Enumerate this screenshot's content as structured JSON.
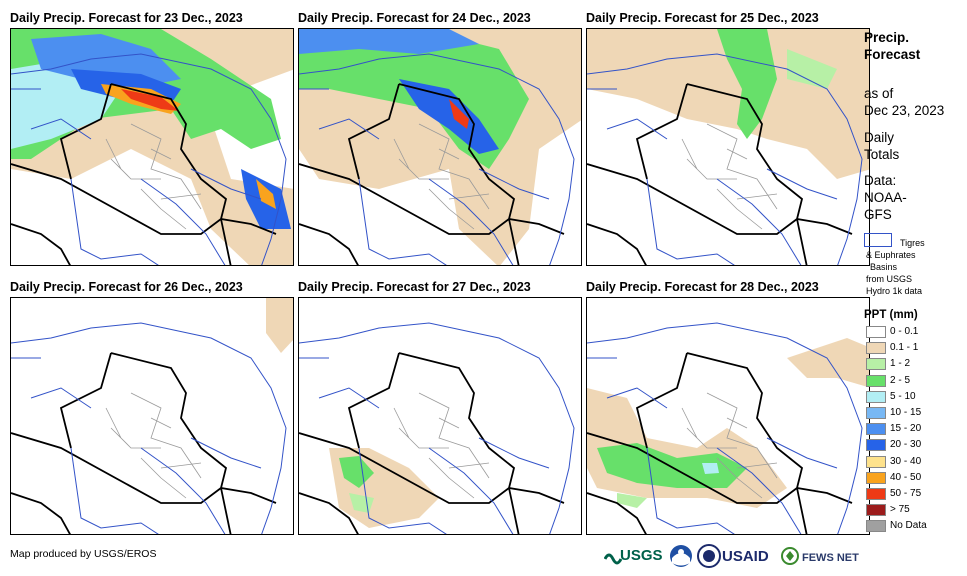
{
  "panels": [
    {
      "title": "Daily Precip. Forecast for 23 Dec., 2023",
      "day": 0
    },
    {
      "title": "Daily Precip. Forecast for 24 Dec., 2023",
      "day": 1
    },
    {
      "title": "Daily Precip. Forecast for 25 Dec., 2023",
      "day": 2
    },
    {
      "title": "Daily Precip. Forecast for 26 Dec., 2023",
      "day": 3
    },
    {
      "title": "Daily Precip. Forecast for 27 Dec., 2023",
      "day": 4
    },
    {
      "title": "Daily Precip. Forecast for 28 Dec., 2023",
      "day": 5
    }
  ],
  "sidebar": {
    "title_line1": "Precip.",
    "title_line2": "Forecast",
    "asof_line1": "as of",
    "asof_line2": "Dec 23, 2023",
    "daily_line1": "Daily",
    "daily_line2": "Totals",
    "data_line1": "Data:",
    "data_line2": "NOAA-",
    "data_line3": "GFS",
    "basin_line1": "Tigres",
    "basin_line2": "& Euphrates",
    "basin_line3": "Basins",
    "basin_line4": "from USGS",
    "basin_line5": "Hydro 1k data"
  },
  "legend": {
    "title": "PPT (mm)",
    "items": [
      {
        "label": "0 - 0.1",
        "color": "#ffffff"
      },
      {
        "label": "0.1 - 1",
        "color": "#efd7b6"
      },
      {
        "label": "1 - 2",
        "color": "#b7f0a6"
      },
      {
        "label": "2 - 5",
        "color": "#67e06a"
      },
      {
        "label": "5 - 10",
        "color": "#b2eef4"
      },
      {
        "label": "10 - 15",
        "color": "#78b8f4"
      },
      {
        "label": "15 - 20",
        "color": "#4c8ff0"
      },
      {
        "label": "20 - 30",
        "color": "#2663e8"
      },
      {
        "label": "30 - 40",
        "color": "#fee28c"
      },
      {
        "label": "40 - 50",
        "color": "#f9a31e"
      },
      {
        "label": "50 - 75",
        "color": "#ee3a16"
      },
      {
        "label": "> 75",
        "color": "#9c1c1c"
      },
      {
        "label": "No Data",
        "color": "#a0a0a0"
      }
    ]
  },
  "footer": {
    "credit": "Map produced by USGS/EROS",
    "logos": [
      "USGS",
      "NOAA",
      "USAID",
      "FEWS NET"
    ]
  },
  "colors": {
    "border": "#000000",
    "river": "#3353c8",
    "province": "#9a9a9a"
  }
}
